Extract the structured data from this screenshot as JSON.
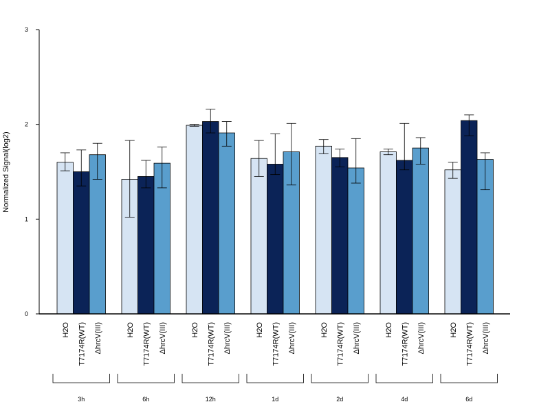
{
  "chart_data": {
    "type": "bar",
    "ylabel": "Normalized Signal(log2)",
    "ylim": [
      0,
      3
    ],
    "yticks": [
      "0",
      "1",
      "2",
      "3"
    ],
    "groups": [
      "3h",
      "6h",
      "12h",
      "1d",
      "2d",
      "4d",
      "6d"
    ],
    "series": [
      {
        "name": "H2O",
        "color": "#d6e4f3",
        "values": [
          1.6,
          1.42,
          1.99,
          1.64,
          1.77,
          1.71,
          1.52
        ],
        "err_low": [
          1.51,
          1.02,
          1.98,
          1.45,
          1.69,
          1.68,
          1.43
        ],
        "err_high": [
          1.7,
          1.83,
          2.0,
          1.83,
          1.84,
          1.74,
          1.6
        ]
      },
      {
        "name": "T7174R(WT)",
        "color": "#0b2357",
        "values": [
          1.5,
          1.45,
          2.03,
          1.58,
          1.65,
          1.62,
          2.04
        ],
        "err_low": [
          1.35,
          1.33,
          1.91,
          1.47,
          1.55,
          1.52,
          1.88
        ],
        "err_high": [
          1.73,
          1.62,
          2.16,
          1.9,
          1.74,
          2.01,
          2.1
        ]
      },
      {
        "name": "ΔhrcV(III)",
        "color": "#599ecd",
        "values": [
          1.68,
          1.59,
          1.91,
          1.71,
          1.54,
          1.75,
          1.63
        ],
        "err_low": [
          1.42,
          1.33,
          1.77,
          1.36,
          1.38,
          1.58,
          1.31
        ],
        "err_high": [
          1.8,
          1.76,
          2.03,
          2.01,
          1.85,
          1.86,
          1.7
        ]
      }
    ]
  }
}
